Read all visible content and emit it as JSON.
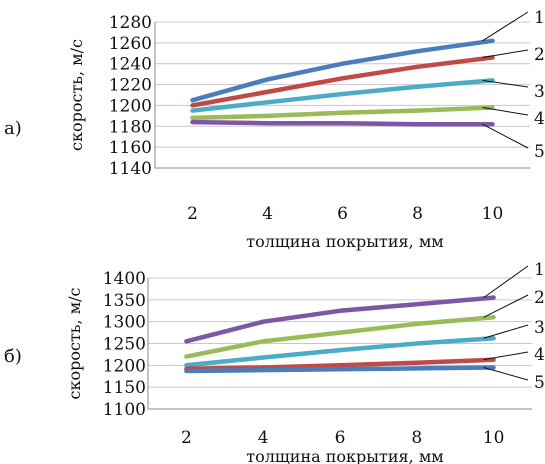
{
  "chart_data": [
    {
      "type": "line",
      "panel_label": "а)",
      "xlabel": "толщина покрытия, мм",
      "ylabel": "скорость, м/с",
      "x": [
        2,
        4,
        6,
        8,
        10
      ],
      "x_ticks": [
        "2",
        "4",
        "6",
        "8",
        "10"
      ],
      "ylim": [
        1140,
        1280
      ],
      "y_ticks": [
        "1140",
        "1160",
        "1180",
        "1200",
        "1220",
        "1240",
        "1260",
        "1280"
      ],
      "grid": true,
      "series": [
        {
          "name": "1",
          "color": "#4a7ebb",
          "values": [
            1205,
            1225,
            1240,
            1252,
            1262
          ]
        },
        {
          "name": "2",
          "color": "#be4b48",
          "values": [
            1200,
            1213,
            1226,
            1237,
            1246
          ]
        },
        {
          "name": "3",
          "color": "#4bacc6",
          "values": [
            1195,
            1203,
            1211,
            1218,
            1224
          ]
        },
        {
          "name": "4",
          "color": "#9bbb59",
          "values": [
            1188,
            1190,
            1193,
            1195,
            1198
          ]
        },
        {
          "name": "5",
          "color": "#7e57a4",
          "values": [
            1184,
            1183,
            1183,
            1182,
            1182
          ]
        }
      ]
    },
    {
      "type": "line",
      "panel_label": "б)",
      "xlabel": "толщина покрытия, мм",
      "ylabel": "скорость, м/с",
      "x": [
        2,
        4,
        6,
        8,
        10
      ],
      "x_ticks": [
        "2",
        "4",
        "6",
        "8",
        "10"
      ],
      "ylim": [
        1100,
        1400
      ],
      "y_ticks": [
        "1100",
        "1150",
        "1200",
        "1250",
        "1300",
        "1350",
        "1400"
      ],
      "grid": true,
      "series": [
        {
          "name": "1",
          "color": "#7e57a4",
          "values": [
            1255,
            1300,
            1325,
            1340,
            1355
          ]
        },
        {
          "name": "2",
          "color": "#9bbb59",
          "values": [
            1220,
            1255,
            1275,
            1295,
            1310
          ]
        },
        {
          "name": "3",
          "color": "#4bacc6",
          "values": [
            1200,
            1218,
            1235,
            1250,
            1262
          ]
        },
        {
          "name": "4",
          "color": "#be4b48",
          "values": [
            1192,
            1195,
            1200,
            1206,
            1213
          ]
        },
        {
          "name": "5",
          "color": "#4a7ebb",
          "values": [
            1187,
            1189,
            1191,
            1193,
            1195
          ]
        }
      ]
    }
  ]
}
